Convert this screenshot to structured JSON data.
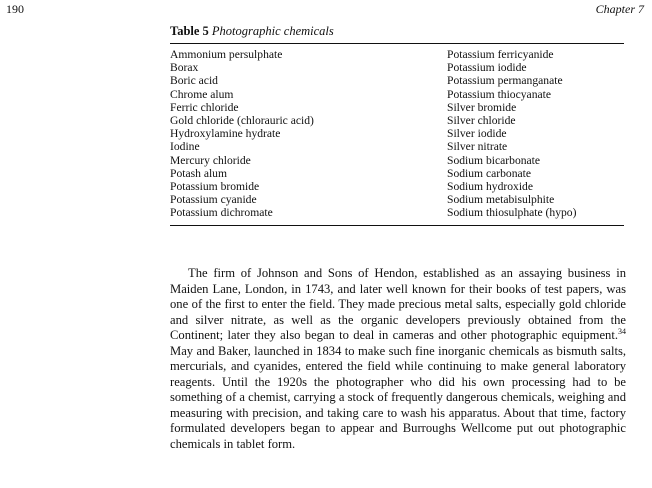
{
  "header": {
    "page_number": "190",
    "chapter": "Chapter 7"
  },
  "table": {
    "number": "Table 5",
    "caption": "Photographic chemicals",
    "left_column": [
      "Ammonium persulphate",
      "Borax",
      "Boric acid",
      "Chrome alum",
      "Ferric chloride",
      "Gold chloride (chlorauric acid)",
      "Hydroxylamine hydrate",
      "Iodine",
      "Mercury chloride",
      "Potash alum",
      "Potassium bromide",
      "Potassium cyanide",
      "Potassium dichromate"
    ],
    "right_column": [
      "Potassium ferricyanide",
      "Potassium iodide",
      "Potassium permanganate",
      "Potassium thiocyanate",
      "Silver bromide",
      "Silver chloride",
      "Silver iodide",
      "Silver nitrate",
      "Sodium bicarbonate",
      "Sodium carbonate",
      "Sodium hydroxide",
      "Sodium metabisulphite",
      "Sodium thiosulphate (hypo)"
    ]
  },
  "body": {
    "paragraph_part1": "The firm of Johnson and Sons of Hendon, established as an assaying business in Maiden Lane, London, in 1743, and later well known for their books of test papers, was one of the first to enter the field. They made precious metal salts, especially gold chloride and silver nitrate, as well as the organic developers previously obtained from the Continent; later they also began to deal in cameras and other photographic equipment.",
    "footnote_ref": "34",
    "paragraph_part2": " May and Baker, launched in 1834 to make such fine inorganic chemicals as bismuth salts, mercurials, and cyanides, entered the field while continuing to make general laboratory reagents. Until the 1920s the photographer who did his own processing had to be something of a chemist, carrying a stock of frequently dangerous chemicals, weighing and measuring with precision, and taking care to wash his apparatus. About that time, factory formulated developers began to appear and Burroughs Wellcome put out photographic chemicals in tablet form."
  }
}
